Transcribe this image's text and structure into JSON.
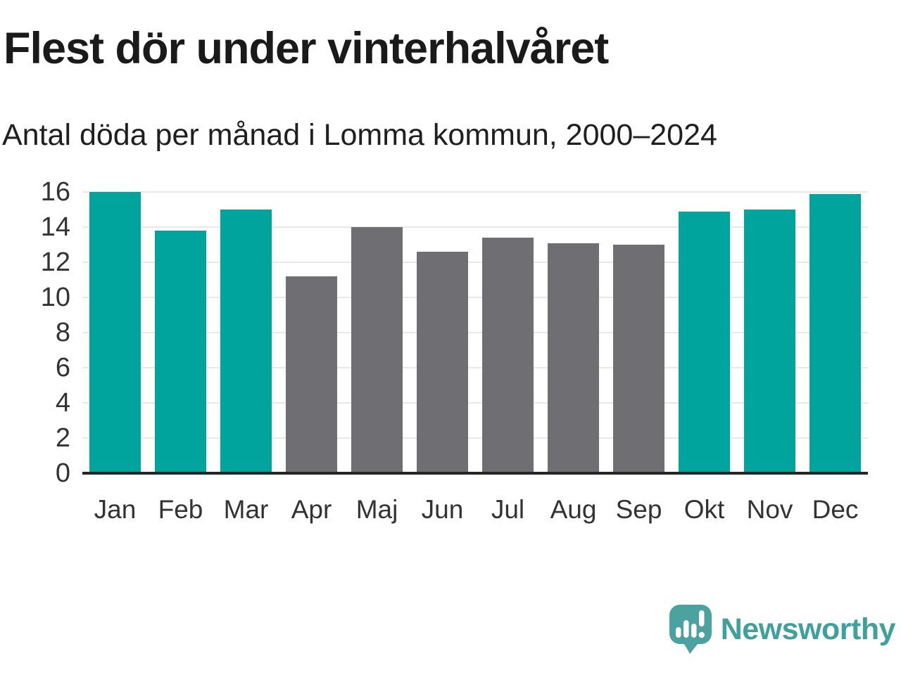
{
  "header": {
    "title": "Flest dör under vinterhalvåret",
    "subtitle": "Antal döda per månad i Lomma kommun, 2000–2024"
  },
  "chart_data": {
    "type": "bar",
    "title": "Flest dör under vinterhalvåret",
    "subtitle": "Antal döda per månad i Lomma kommun, 2000–2024",
    "categories": [
      "Jan",
      "Feb",
      "Mar",
      "Apr",
      "Maj",
      "Jun",
      "Jul",
      "Aug",
      "Sep",
      "Okt",
      "Nov",
      "Dec"
    ],
    "values": [
      16.0,
      13.8,
      15.0,
      11.2,
      14.0,
      12.6,
      13.4,
      13.1,
      13.0,
      14.9,
      15.0,
      15.9
    ],
    "bar_groups": [
      "winter",
      "winter",
      "winter",
      "summer",
      "summer",
      "summer",
      "summer",
      "summer",
      "summer",
      "winter",
      "winter",
      "winter"
    ],
    "palette": {
      "winter": "#00a49c",
      "summer": "#6e6e73"
    },
    "xlabel": "",
    "ylabel": "",
    "ylim": [
      0,
      16
    ],
    "yticks": [
      0,
      2,
      4,
      6,
      8,
      10,
      12,
      14,
      16
    ],
    "grid": "horizontal",
    "legend": "none"
  },
  "footer": {
    "brand": "Newsworthy",
    "brand_color": "#3fa09c",
    "logo_bubble_color": "#4ba29e",
    "logo_icon": "speech-bubble-bar-chart-icon"
  }
}
